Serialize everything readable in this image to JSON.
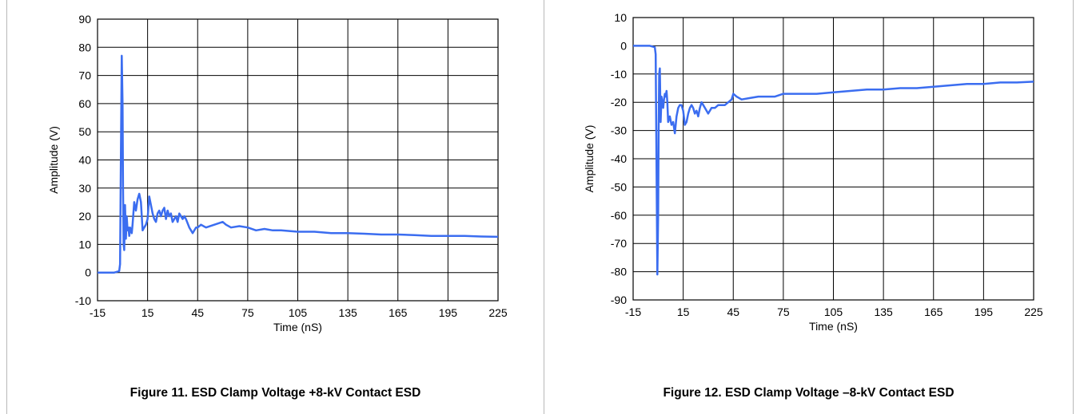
{
  "colors": {
    "trace": "#3b6df0",
    "grid": "#000000",
    "background": "#ffffff"
  },
  "chart_data": [
    {
      "type": "line",
      "caption": "Figure 11. ESD Clamp Voltage +8-kV Contact ESD",
      "xlabel": "Time (nS)",
      "ylabel": "Amplitude (V)",
      "xlim": [
        -15,
        225
      ],
      "ylim": [
        -10,
        90
      ],
      "xticks": [
        -15,
        15,
        45,
        75,
        105,
        135,
        165,
        195,
        225
      ],
      "yticks": [
        -10,
        0,
        10,
        20,
        30,
        40,
        50,
        60,
        70,
        80,
        90
      ],
      "grid": true,
      "series": [
        {
          "x": [
            -15,
            -10,
            -5,
            -2,
            -1.5,
            -1,
            -0.5,
            0,
            0.3,
            0.6,
            1,
            1.5,
            2,
            2.5,
            3,
            3.5,
            4,
            4.5,
            5,
            5.5,
            6,
            7,
            8,
            9,
            10,
            11,
            12,
            13,
            14,
            15,
            16,
            17,
            18,
            19,
            20,
            21,
            22,
            23,
            24,
            25,
            26,
            27,
            28,
            29,
            30,
            31,
            32,
            33,
            34,
            35,
            36,
            37,
            38,
            40,
            42,
            44,
            45,
            47,
            50,
            55,
            60,
            62,
            65,
            70,
            75,
            80,
            85,
            90,
            95,
            105,
            115,
            125,
            135,
            145,
            155,
            165,
            175,
            185,
            195,
            205,
            215,
            225
          ],
          "y": [
            0,
            0,
            0,
            0.5,
            3,
            40,
            77,
            60,
            30,
            10,
            8,
            24,
            12,
            20,
            15,
            16,
            13,
            16,
            15,
            14,
            17,
            25,
            22,
            26,
            28,
            25,
            15,
            16,
            17,
            19,
            27,
            24,
            21,
            19,
            18,
            21,
            22,
            20,
            22,
            23,
            19,
            22,
            20,
            21,
            18,
            19,
            20,
            18,
            21,
            20,
            19,
            20,
            19,
            16,
            14,
            16,
            16,
            17,
            16,
            17,
            18,
            17,
            16,
            16.5,
            16,
            15,
            15.5,
            15,
            15,
            14.5,
            14.5,
            14,
            14,
            13.8,
            13.5,
            13.5,
            13.3,
            13,
            13,
            13,
            12.8,
            12.7
          ]
        }
      ]
    },
    {
      "type": "line",
      "caption": "Figure 12. ESD Clamp Voltage –8-kV Contact ESD",
      "xlabel": "Time (nS)",
      "ylabel": "Amplitude (V)",
      "xlim": [
        -15,
        225
      ],
      "ylim": [
        -90,
        10
      ],
      "xticks": [
        -15,
        15,
        45,
        75,
        105,
        135,
        165,
        195,
        225
      ],
      "yticks": [
        -90,
        -80,
        -70,
        -60,
        -50,
        -40,
        -30,
        -20,
        -10,
        0,
        10
      ],
      "grid": true,
      "series": [
        {
          "x": [
            -15,
            -10,
            -5,
            -2,
            -1.5,
            -1,
            -0.5,
            0,
            0.3,
            0.6,
            1,
            1.5,
            2,
            2.5,
            3,
            3.5,
            4,
            4.5,
            5,
            5.5,
            6,
            7,
            8,
            9,
            10,
            11,
            12,
            13,
            14,
            15,
            16,
            17,
            18,
            19,
            20,
            21,
            22,
            23,
            24,
            25,
            26,
            27,
            28,
            30,
            32,
            34,
            36,
            38,
            40,
            42,
            44,
            45,
            47,
            50,
            55,
            60,
            65,
            70,
            75,
            80,
            85,
            90,
            95,
            105,
            115,
            125,
            135,
            145,
            155,
            165,
            175,
            185,
            195,
            205,
            215,
            225
          ],
          "y": [
            0,
            0,
            0,
            -0.5,
            -3,
            -40,
            -81,
            -60,
            -30,
            -10,
            -8,
            -27,
            -18,
            -20,
            -22,
            -19,
            -17,
            -18,
            -16,
            -20,
            -27,
            -25,
            -28,
            -27,
            -31,
            -25,
            -22,
            -21,
            -21,
            -23,
            -28,
            -27,
            -24,
            -22,
            -21,
            -22,
            -24,
            -23,
            -25,
            -22,
            -20,
            -21,
            -22,
            -24,
            -22,
            -22,
            -21,
            -21,
            -21,
            -20,
            -19,
            -17,
            -18,
            -19,
            -18.5,
            -18,
            -18,
            -18,
            -17,
            -17,
            -17,
            -17,
            -17,
            -16.5,
            -16,
            -15.5,
            -15.5,
            -15,
            -15,
            -14.5,
            -14,
            -13.5,
            -13.5,
            -13,
            -13,
            -12.7
          ]
        }
      ]
    }
  ]
}
